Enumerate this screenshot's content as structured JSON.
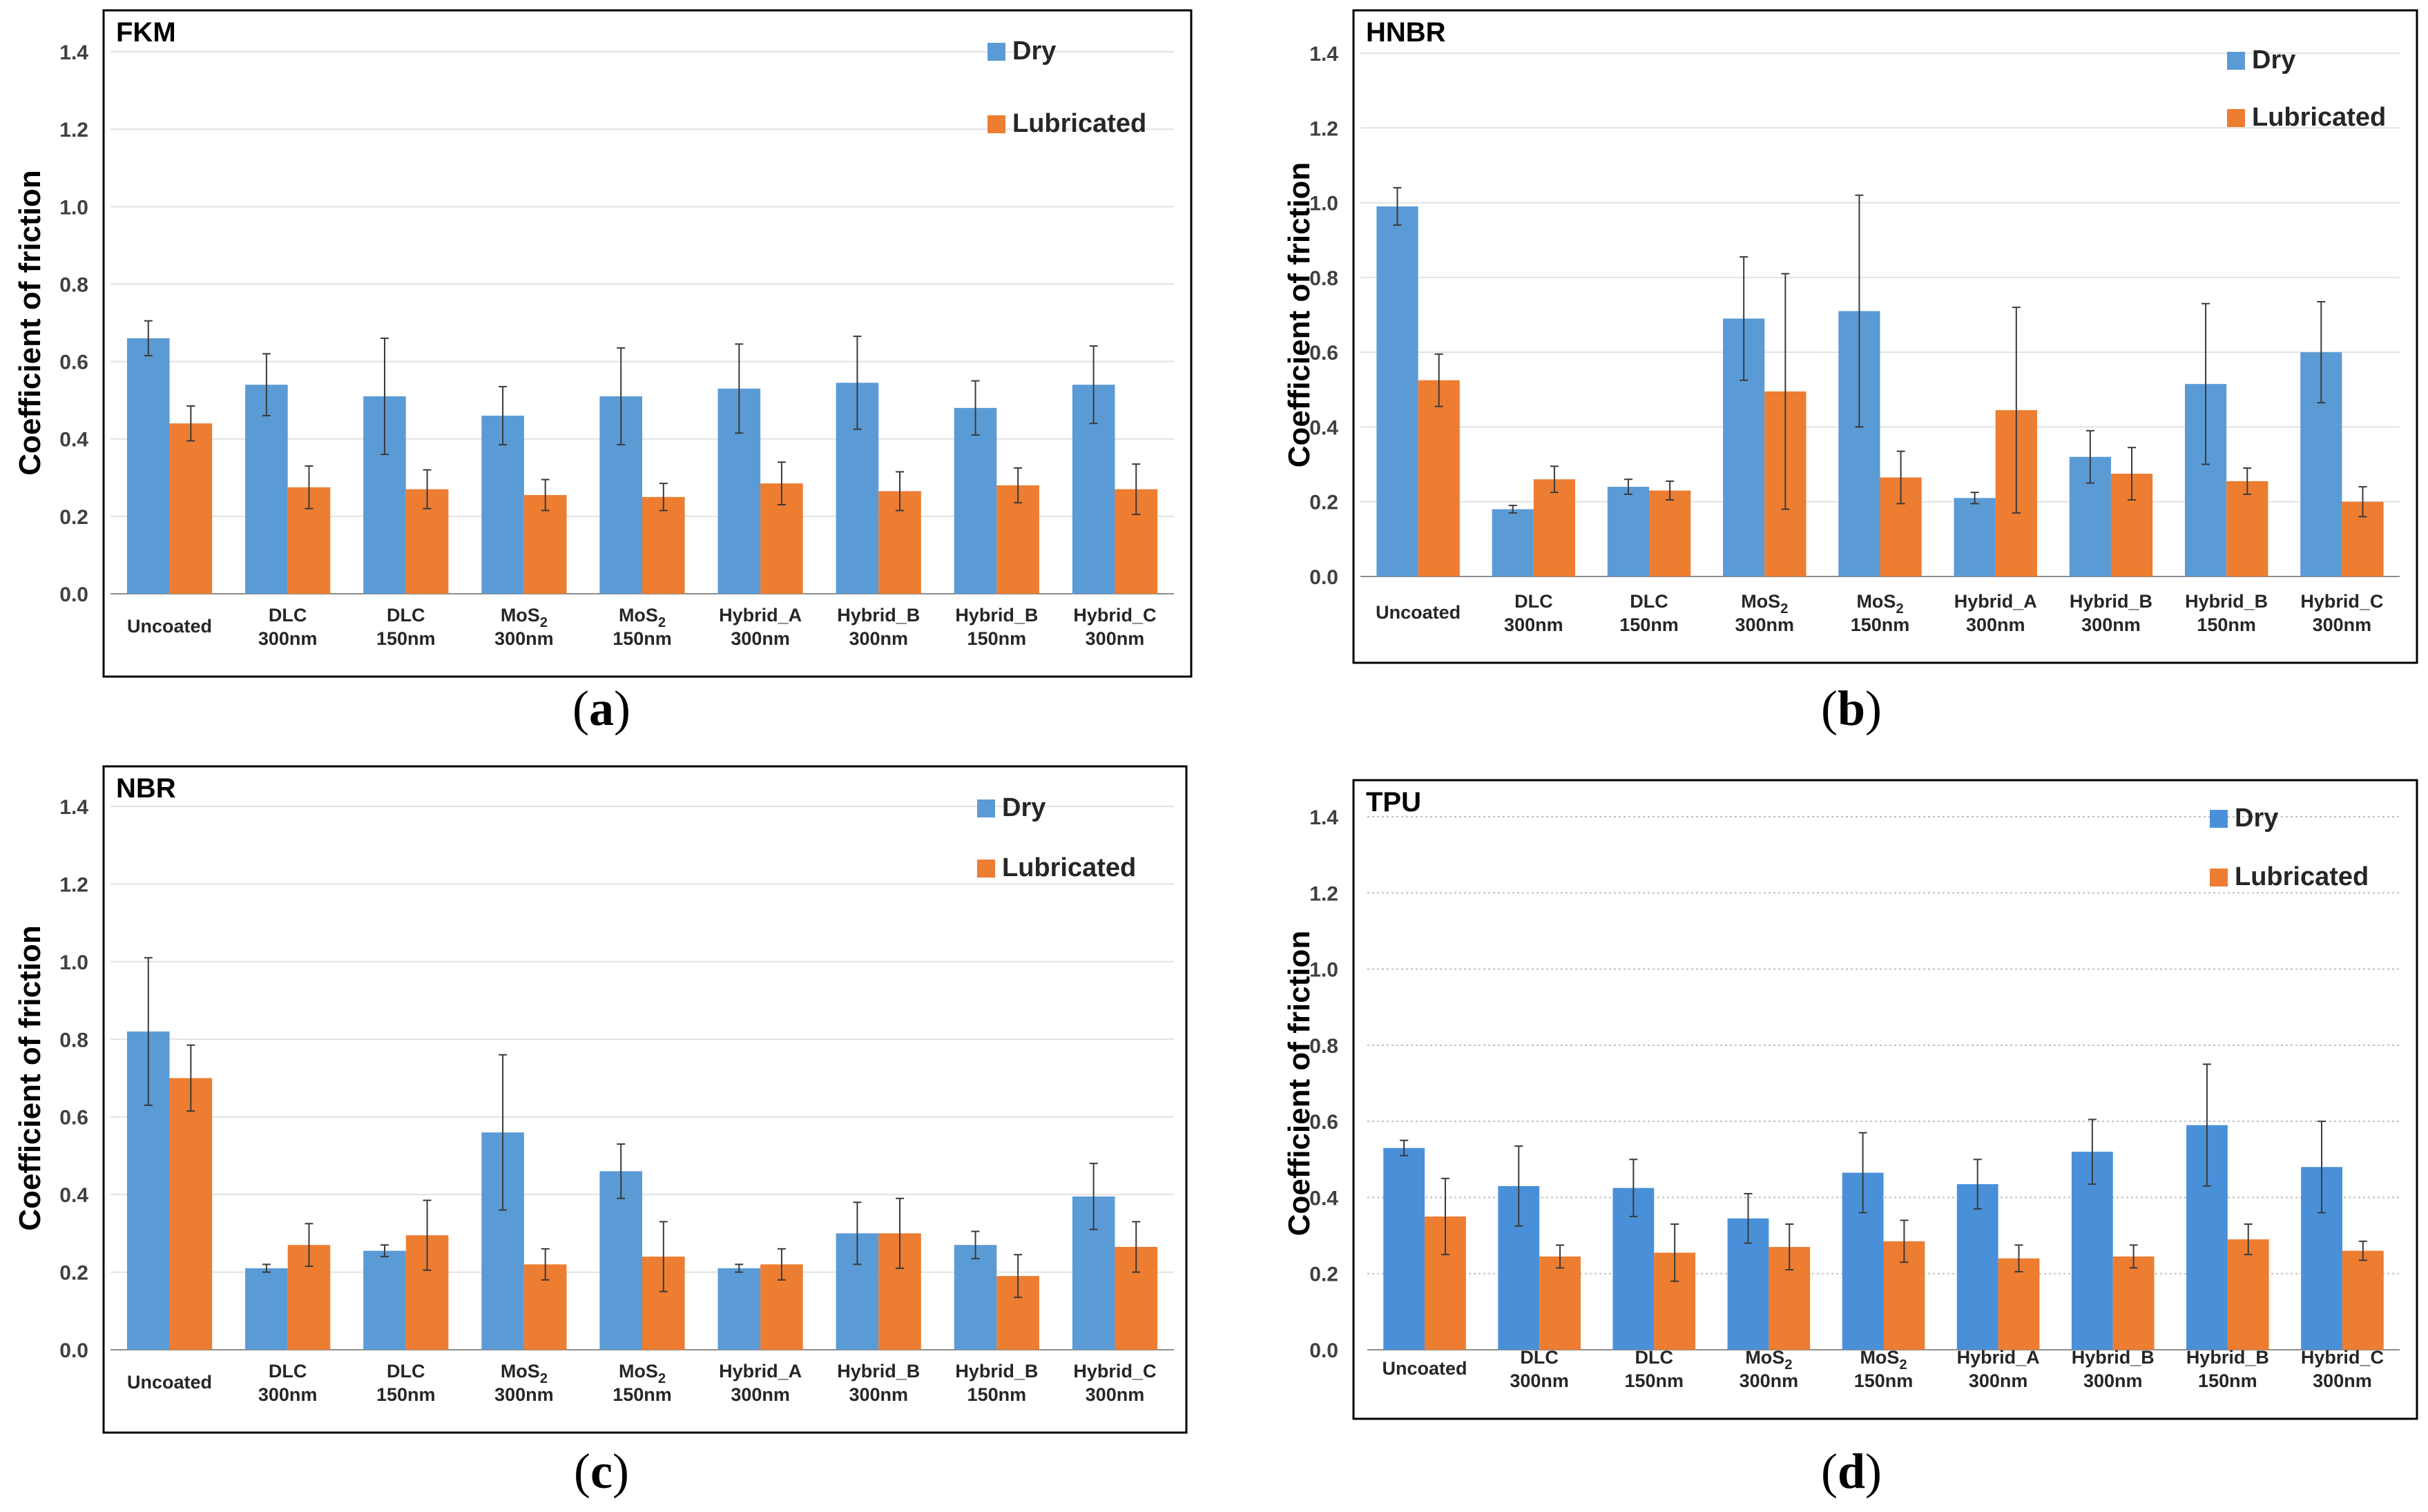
{
  "colors": {
    "dry": "#5B9BD5",
    "lubricated": "#ED7D31",
    "dry_tpu": "#4A90D9"
  },
  "y_axis": {
    "label": "Coefficient of friction",
    "ticks": [
      "0.0",
      "0.2",
      "0.4",
      "0.6",
      "0.8",
      "1.0",
      "1.2",
      "1.4"
    ]
  },
  "legend": {
    "dry": "Dry",
    "lubricated": "Lubricated"
  },
  "captions": {
    "a": "a",
    "b": "b",
    "c": "c",
    "d": "d"
  },
  "chart_data": [
    {
      "type": "bar",
      "title": "FKM",
      "ylabel": "Coefficient of friction",
      "ylim": [
        0,
        1.4
      ],
      "categories": [
        [
          "Uncoated"
        ],
        [
          "DLC",
          "300nm"
        ],
        [
          "DLC",
          "150nm"
        ],
        [
          "MoS2",
          "300nm"
        ],
        [
          "MoS2",
          "150nm"
        ],
        [
          "Hybrid_A",
          "300nm"
        ],
        [
          "Hybrid_B",
          "300nm"
        ],
        [
          "Hybrid_B",
          "150nm"
        ],
        [
          "Hybrid_C",
          "300nm"
        ]
      ],
      "series": [
        {
          "name": "Dry",
          "values": [
            0.66,
            0.54,
            0.51,
            0.46,
            0.51,
            0.53,
            0.545,
            0.48,
            0.54
          ],
          "errors": [
            0.045,
            0.08,
            0.15,
            0.075,
            0.125,
            0.115,
            0.12,
            0.07,
            0.1
          ]
        },
        {
          "name": "Lubricated",
          "values": [
            0.44,
            0.275,
            0.27,
            0.255,
            0.25,
            0.285,
            0.265,
            0.28,
            0.27
          ],
          "errors": [
            0.045,
            0.055,
            0.05,
            0.04,
            0.035,
            0.055,
            0.05,
            0.045,
            0.065
          ]
        }
      ]
    },
    {
      "type": "bar",
      "title": "HNBR",
      "ylabel": "Coefficient of friction",
      "ylim": [
        0,
        1.4
      ],
      "categories": [
        [
          "Uncoated"
        ],
        [
          "DLC",
          "300nm"
        ],
        [
          "DLC",
          "150nm"
        ],
        [
          "MoS2",
          "300nm"
        ],
        [
          "MoS2",
          "150nm"
        ],
        [
          "Hybrid_A",
          "300nm"
        ],
        [
          "Hybrid_B",
          "300nm"
        ],
        [
          "Hybrid_B",
          "150nm"
        ],
        [
          "Hybrid_C",
          "300nm"
        ]
      ],
      "series": [
        {
          "name": "Dry",
          "values": [
            0.99,
            0.18,
            0.24,
            0.69,
            0.71,
            0.21,
            0.32,
            0.515,
            0.6
          ],
          "errors": [
            0.05,
            0.01,
            0.02,
            0.165,
            0.31,
            0.015,
            0.07,
            0.215,
            0.135
          ]
        },
        {
          "name": "Lubricated",
          "values": [
            0.525,
            0.26,
            0.23,
            0.495,
            0.265,
            0.445,
            0.275,
            0.255,
            0.2
          ],
          "errors": [
            0.07,
            0.035,
            0.025,
            0.315,
            0.07,
            0.275,
            0.07,
            0.035,
            0.04
          ]
        }
      ]
    },
    {
      "type": "bar",
      "title": "NBR",
      "ylabel": "Coefficient of friction",
      "ylim": [
        0,
        1.4
      ],
      "categories": [
        [
          "Uncoated"
        ],
        [
          "DLC",
          "300nm"
        ],
        [
          "DLC",
          "150nm"
        ],
        [
          "MoS2",
          "300nm"
        ],
        [
          "MoS2",
          "150nm"
        ],
        [
          "Hybrid_A",
          "300nm"
        ],
        [
          "Hybrid_B",
          "300nm"
        ],
        [
          "Hybrid_B",
          "150nm"
        ],
        [
          "Hybrid_C",
          "300nm"
        ]
      ],
      "series": [
        {
          "name": "Dry",
          "values": [
            0.82,
            0.21,
            0.255,
            0.56,
            0.46,
            0.21,
            0.3,
            0.27,
            0.395
          ],
          "errors": [
            0.19,
            0.01,
            0.015,
            0.2,
            0.07,
            0.01,
            0.08,
            0.035,
            0.085
          ]
        },
        {
          "name": "Lubricated",
          "values": [
            0.7,
            0.27,
            0.295,
            0.22,
            0.24,
            0.22,
            0.3,
            0.19,
            0.265
          ],
          "errors": [
            0.085,
            0.055,
            0.09,
            0.04,
            0.09,
            0.04,
            0.09,
            0.055,
            0.065
          ]
        }
      ]
    },
    {
      "type": "bar",
      "title": "TPU",
      "ylabel": "Coefficient of friction",
      "ylim": [
        0,
        1.4
      ],
      "categories": [
        [
          "Uncoated"
        ],
        [
          "DLC",
          "300nm"
        ],
        [
          "DLC",
          "150nm"
        ],
        [
          "MoS2",
          "300nm"
        ],
        [
          "MoS2",
          "150nm"
        ],
        [
          "Hybrid_A",
          "300nm"
        ],
        [
          "Hybrid_B",
          "300nm"
        ],
        [
          "Hybrid_B",
          "150nm"
        ],
        [
          "Hybrid_C",
          "300nm"
        ]
      ],
      "series": [
        {
          "name": "Dry",
          "values": [
            0.53,
            0.43,
            0.425,
            0.345,
            0.465,
            0.435,
            0.52,
            0.59,
            0.48
          ],
          "errors": [
            0.02,
            0.105,
            0.075,
            0.065,
            0.105,
            0.065,
            0.085,
            0.16,
            0.12
          ]
        },
        {
          "name": "Lubricated",
          "values": [
            0.35,
            0.245,
            0.255,
            0.27,
            0.285,
            0.24,
            0.245,
            0.29,
            0.26
          ],
          "errors": [
            0.1,
            0.03,
            0.075,
            0.06,
            0.055,
            0.035,
            0.03,
            0.04,
            0.025
          ]
        }
      ]
    }
  ]
}
